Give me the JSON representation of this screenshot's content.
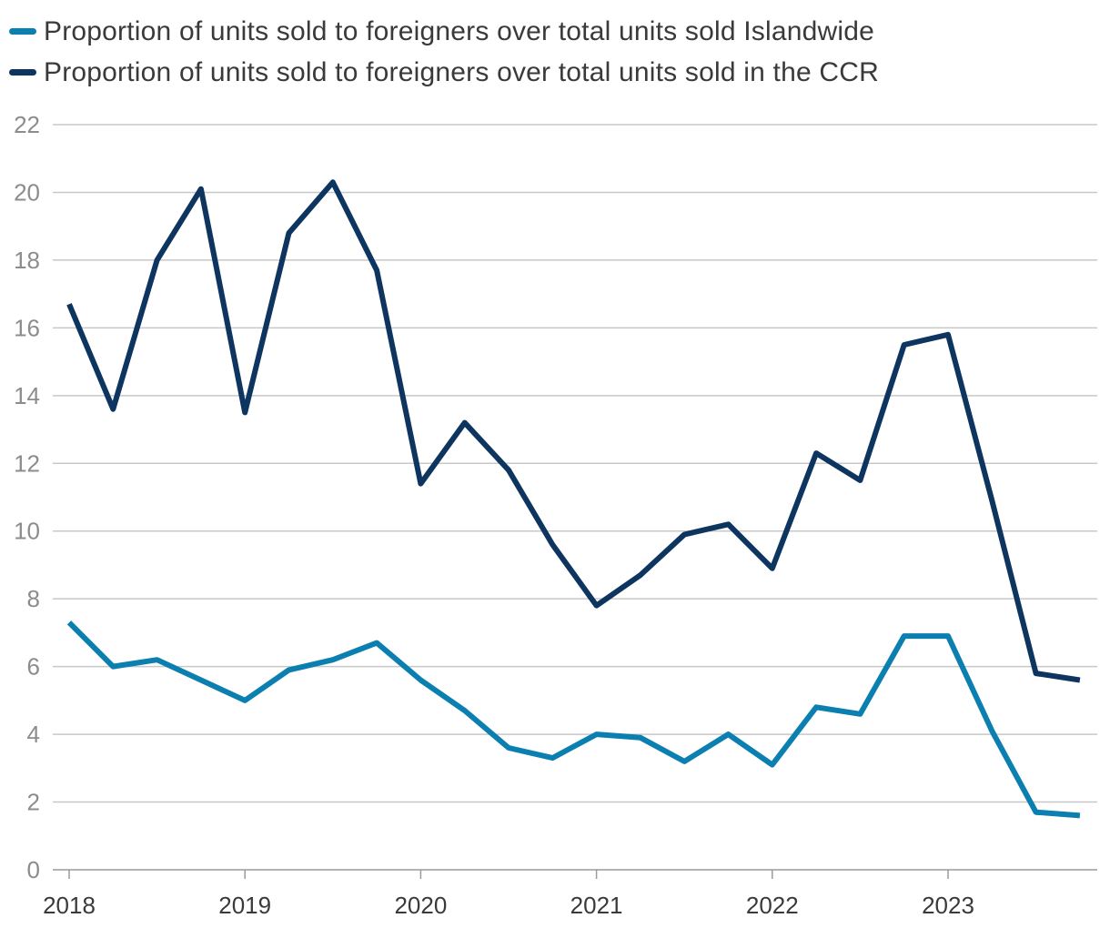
{
  "chart_data": {
    "type": "line",
    "title": "",
    "xlabel": "",
    "ylabel": "",
    "ylim": [
      0,
      22
    ],
    "yticks": [
      0,
      2,
      4,
      6,
      8,
      10,
      12,
      14,
      16,
      18,
      20,
      22
    ],
    "xtick_labels": [
      "2018",
      "2019",
      "2020",
      "2021",
      "2022",
      "2023"
    ],
    "x": [
      "2018Q1",
      "2018Q2",
      "2018Q3",
      "2018Q4",
      "2019Q1",
      "2019Q2",
      "2019Q3",
      "2019Q4",
      "2020Q1",
      "2020Q2",
      "2020Q3",
      "2020Q4",
      "2021Q1",
      "2021Q2",
      "2021Q3",
      "2021Q4",
      "2022Q1",
      "2022Q2",
      "2022Q3",
      "2022Q4",
      "2023Q1",
      "2023Q2",
      "2023Q3",
      "2023Q4"
    ],
    "grid": true,
    "legend_position": "top-left",
    "series": [
      {
        "name": "Proportion of units sold to foreigners over total units sold Islandwide",
        "color": "#0a7fb0",
        "values": [
          7.3,
          6.0,
          6.2,
          5.6,
          5.0,
          5.9,
          6.2,
          6.7,
          5.6,
          4.7,
          3.6,
          3.3,
          4.0,
          3.9,
          3.2,
          4.0,
          3.1,
          4.8,
          4.6,
          6.9,
          6.9,
          4.1,
          1.7,
          1.6
        ]
      },
      {
        "name": "Proportion of units sold to foreigners over total units sold in the CCR",
        "color": "#0d3560",
        "values": [
          16.7,
          13.6,
          18.0,
          20.1,
          13.5,
          18.8,
          20.3,
          17.7,
          11.4,
          13.2,
          11.8,
          9.6,
          7.8,
          8.7,
          9.9,
          10.2,
          8.9,
          12.3,
          11.5,
          15.5,
          15.8,
          10.9,
          5.8,
          5.6
        ]
      }
    ]
  }
}
